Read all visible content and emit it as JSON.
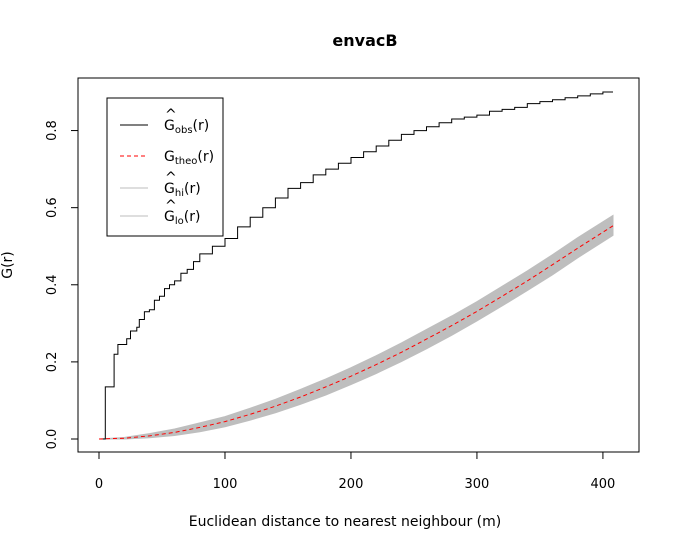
{
  "chart_data": {
    "type": "line",
    "title": "envacB",
    "xlabel": "Euclidean distance to nearest neighbour (m)",
    "ylabel": "G(r)",
    "xlim": [
      0,
      408
    ],
    "ylim": [
      0,
      0.9
    ],
    "xticks": [
      "0",
      "100",
      "200",
      "300",
      "400"
    ],
    "yticks": [
      "0.0",
      "0.2",
      "0.4",
      "0.6",
      "0.8"
    ],
    "legend": {
      "position": "top-left",
      "entries": [
        {
          "main": "G",
          "hat": "^",
          "sub": "obs",
          "suffix": "(r)",
          "color": "#000000",
          "dash": "solid"
        },
        {
          "main": "G",
          "hat": "",
          "sub": "theo",
          "suffix": "(r)",
          "color": "#ff0000",
          "dash": "dashed"
        },
        {
          "main": "G",
          "hat": "^",
          "sub": "hi",
          "suffix": "(r)",
          "color": "#bebebe",
          "dash": "solid"
        },
        {
          "main": "G",
          "hat": "^",
          "sub": "lo",
          "suffix": "(r)",
          "color": "#bebebe",
          "dash": "solid"
        }
      ]
    },
    "series": [
      {
        "name": "obs",
        "color": "#000000",
        "x": [
          0,
          2,
          5,
          10,
          12,
          15,
          18,
          22,
          25,
          30,
          32,
          36,
          40,
          44,
          48,
          52,
          56,
          60,
          65,
          70,
          75,
          80,
          90,
          100,
          110,
          120,
          130,
          140,
          150,
          160,
          170,
          180,
          190,
          200,
          210,
          220,
          230,
          240,
          250,
          260,
          270,
          280,
          290,
          300,
          310,
          320,
          330,
          340,
          350,
          360,
          370,
          380,
          390,
          400,
          408
        ],
        "y": [
          0,
          0,
          0.135,
          0.135,
          0.22,
          0.245,
          0.245,
          0.26,
          0.28,
          0.29,
          0.31,
          0.33,
          0.335,
          0.36,
          0.37,
          0.39,
          0.4,
          0.41,
          0.43,
          0.44,
          0.46,
          0.48,
          0.5,
          0.52,
          0.55,
          0.575,
          0.6,
          0.625,
          0.65,
          0.665,
          0.685,
          0.7,
          0.715,
          0.73,
          0.745,
          0.76,
          0.775,
          0.79,
          0.8,
          0.81,
          0.82,
          0.83,
          0.835,
          0.84,
          0.85,
          0.855,
          0.86,
          0.87,
          0.875,
          0.88,
          0.885,
          0.89,
          0.895,
          0.9,
          0.9
        ]
      },
      {
        "name": "theo",
        "color": "#ff0000",
        "x": [
          0,
          20,
          40,
          60,
          80,
          100,
          120,
          140,
          160,
          180,
          200,
          220,
          240,
          260,
          280,
          300,
          320,
          340,
          360,
          380,
          408
        ],
        "y": [
          0,
          0.002,
          0.008,
          0.017,
          0.03,
          0.045,
          0.064,
          0.085,
          0.109,
          0.135,
          0.163,
          0.193,
          0.225,
          0.259,
          0.294,
          0.331,
          0.37,
          0.41,
          0.452,
          0.495,
          0.553
        ]
      },
      {
        "name": "hi",
        "color": "#bebebe",
        "x": [
          0,
          20,
          40,
          60,
          80,
          100,
          120,
          140,
          160,
          180,
          200,
          220,
          240,
          260,
          280,
          300,
          320,
          340,
          360,
          380,
          408
        ],
        "y": [
          0,
          0.004,
          0.014,
          0.026,
          0.042,
          0.058,
          0.08,
          0.103,
          0.129,
          0.156,
          0.185,
          0.216,
          0.249,
          0.284,
          0.319,
          0.356,
          0.396,
          0.436,
          0.478,
          0.522,
          0.58
        ]
      },
      {
        "name": "lo",
        "color": "#bebebe",
        "x": [
          0,
          20,
          40,
          60,
          80,
          100,
          120,
          140,
          160,
          180,
          200,
          220,
          240,
          260,
          280,
          300,
          320,
          340,
          360,
          380,
          408
        ],
        "y": [
          0,
          0.0,
          0.003,
          0.009,
          0.019,
          0.032,
          0.049,
          0.068,
          0.09,
          0.114,
          0.141,
          0.17,
          0.201,
          0.234,
          0.269,
          0.306,
          0.345,
          0.385,
          0.426,
          0.47,
          0.528
        ]
      }
    ]
  }
}
